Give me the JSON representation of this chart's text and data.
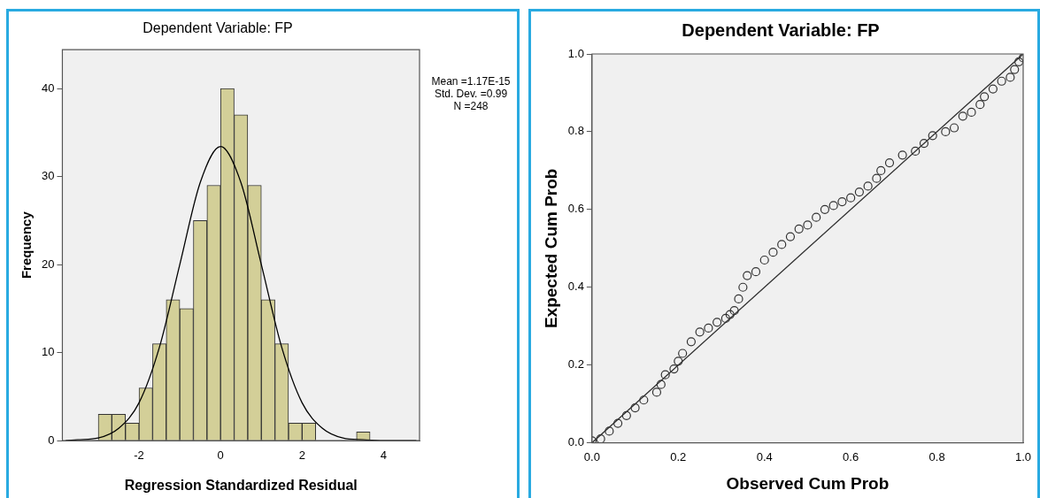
{
  "chart_data": [
    {
      "type": "histogram",
      "title": "Dependent Variable: FP",
      "xlabel": "Regression Standardized Residual",
      "ylabel": "Frequency",
      "bins": [
        -3,
        -2.667,
        -2.333,
        -2,
        -1.667,
        -1.333,
        -1,
        -0.667,
        -0.333,
        0,
        0.333,
        0.667,
        1,
        1.333,
        1.667,
        2,
        2.333,
        2.667,
        3,
        3.333,
        3.667
      ],
      "values": [
        3,
        3,
        2,
        6,
        11,
        16,
        15,
        25,
        29,
        40,
        37,
        29,
        16,
        11,
        2,
        2,
        0,
        0,
        0,
        1
      ],
      "color": "#d3cf98",
      "series": [
        {
          "type": "line",
          "color": "#000000",
          "x": [
            -3.8,
            -3.5,
            -3,
            -2.5,
            -2,
            -1.5,
            -1,
            -0.5,
            0,
            0.5,
            1,
            1.5,
            2,
            2.5,
            3,
            3.5,
            4,
            4.8
          ],
          "values": [
            0,
            0.1,
            0.3,
            1.4,
            4.3,
            10.6,
            20,
            29.3,
            33.4,
            29.3,
            20,
            10.6,
            4.3,
            1.4,
            0.3,
            0.1,
            0,
            0
          ]
        }
      ],
      "xlim": [
        -3.88,
        4.88
      ],
      "ylim": [
        0,
        44.4
      ],
      "xticks": [
        -2,
        0,
        2,
        4
      ],
      "yticks": [
        0,
        10,
        20,
        30,
        40
      ],
      "grid": false,
      "legend": false,
      "marker": "none",
      "annotations": [
        "Mean =1.17E-15",
        "Std. Dev. =0.99",
        "N =248"
      ]
    },
    {
      "type": "scatter",
      "title": "Dependent Variable: FP",
      "xlabel": "Observed Cum Prob",
      "ylabel": "Expected Cum Prob",
      "series": [
        {
          "type": "scatter",
          "color": "#333333",
          "marker": "circle",
          "x": [
            0,
            0.02,
            0.04,
            0.06,
            0.08,
            0.1,
            0.12,
            0.15,
            0.16,
            0.17,
            0.19,
            0.2,
            0.21,
            0.23,
            0.25,
            0.27,
            0.29,
            0.31,
            0.32,
            0.33,
            0.34,
            0.35,
            0.36,
            0.38,
            0.4,
            0.42,
            0.44,
            0.46,
            0.48,
            0.5,
            0.52,
            0.54,
            0.56,
            0.58,
            0.6,
            0.62,
            0.64,
            0.66,
            0.67,
            0.69,
            0.72,
            0.75,
            0.77,
            0.79,
            0.82,
            0.84,
            0.86,
            0.88,
            0.9,
            0.91,
            0.93,
            0.95,
            0.97,
            0.98,
            0.99,
            1
          ],
          "values": [
            0.005,
            0.01,
            0.03,
            0.05,
            0.07,
            0.09,
            0.11,
            0.13,
            0.15,
            0.175,
            0.19,
            0.21,
            0.23,
            0.26,
            0.285,
            0.295,
            0.31,
            0.32,
            0.33,
            0.34,
            0.37,
            0.4,
            0.43,
            0.44,
            0.47,
            0.49,
            0.51,
            0.53,
            0.55,
            0.56,
            0.58,
            0.6,
            0.61,
            0.62,
            0.63,
            0.645,
            0.66,
            0.68,
            0.7,
            0.72,
            0.74,
            0.75,
            0.77,
            0.79,
            0.8,
            0.81,
            0.84,
            0.85,
            0.87,
            0.89,
            0.91,
            0.93,
            0.94,
            0.96,
            0.98,
            0.99
          ]
        },
        {
          "type": "line",
          "color": "#333333",
          "marker": "none",
          "x": [
            0,
            1
          ],
          "values": [
            0,
            1
          ]
        }
      ],
      "xlim": [
        0,
        1
      ],
      "ylim": [
        0,
        1
      ],
      "xticks": [
        {
          "value": 0,
          "label": "0.0"
        },
        {
          "value": 0.2,
          "label": "0.2"
        },
        {
          "value": 0.4,
          "label": "0.4"
        },
        {
          "value": 0.6,
          "label": "0.6"
        },
        {
          "value": 0.8,
          "label": "0.8"
        },
        {
          "value": 1,
          "label": "1.0"
        }
      ],
      "yticks": [
        {
          "value": 0,
          "label": "0.0"
        },
        {
          "value": 0.2,
          "label": "0.2"
        },
        {
          "value": 0.4,
          "label": "0.4"
        },
        {
          "value": 0.6,
          "label": "0.6"
        },
        {
          "value": 0.8,
          "label": "0.8"
        },
        {
          "value": 1,
          "label": "1.0"
        }
      ],
      "grid": false,
      "legend": false
    }
  ]
}
